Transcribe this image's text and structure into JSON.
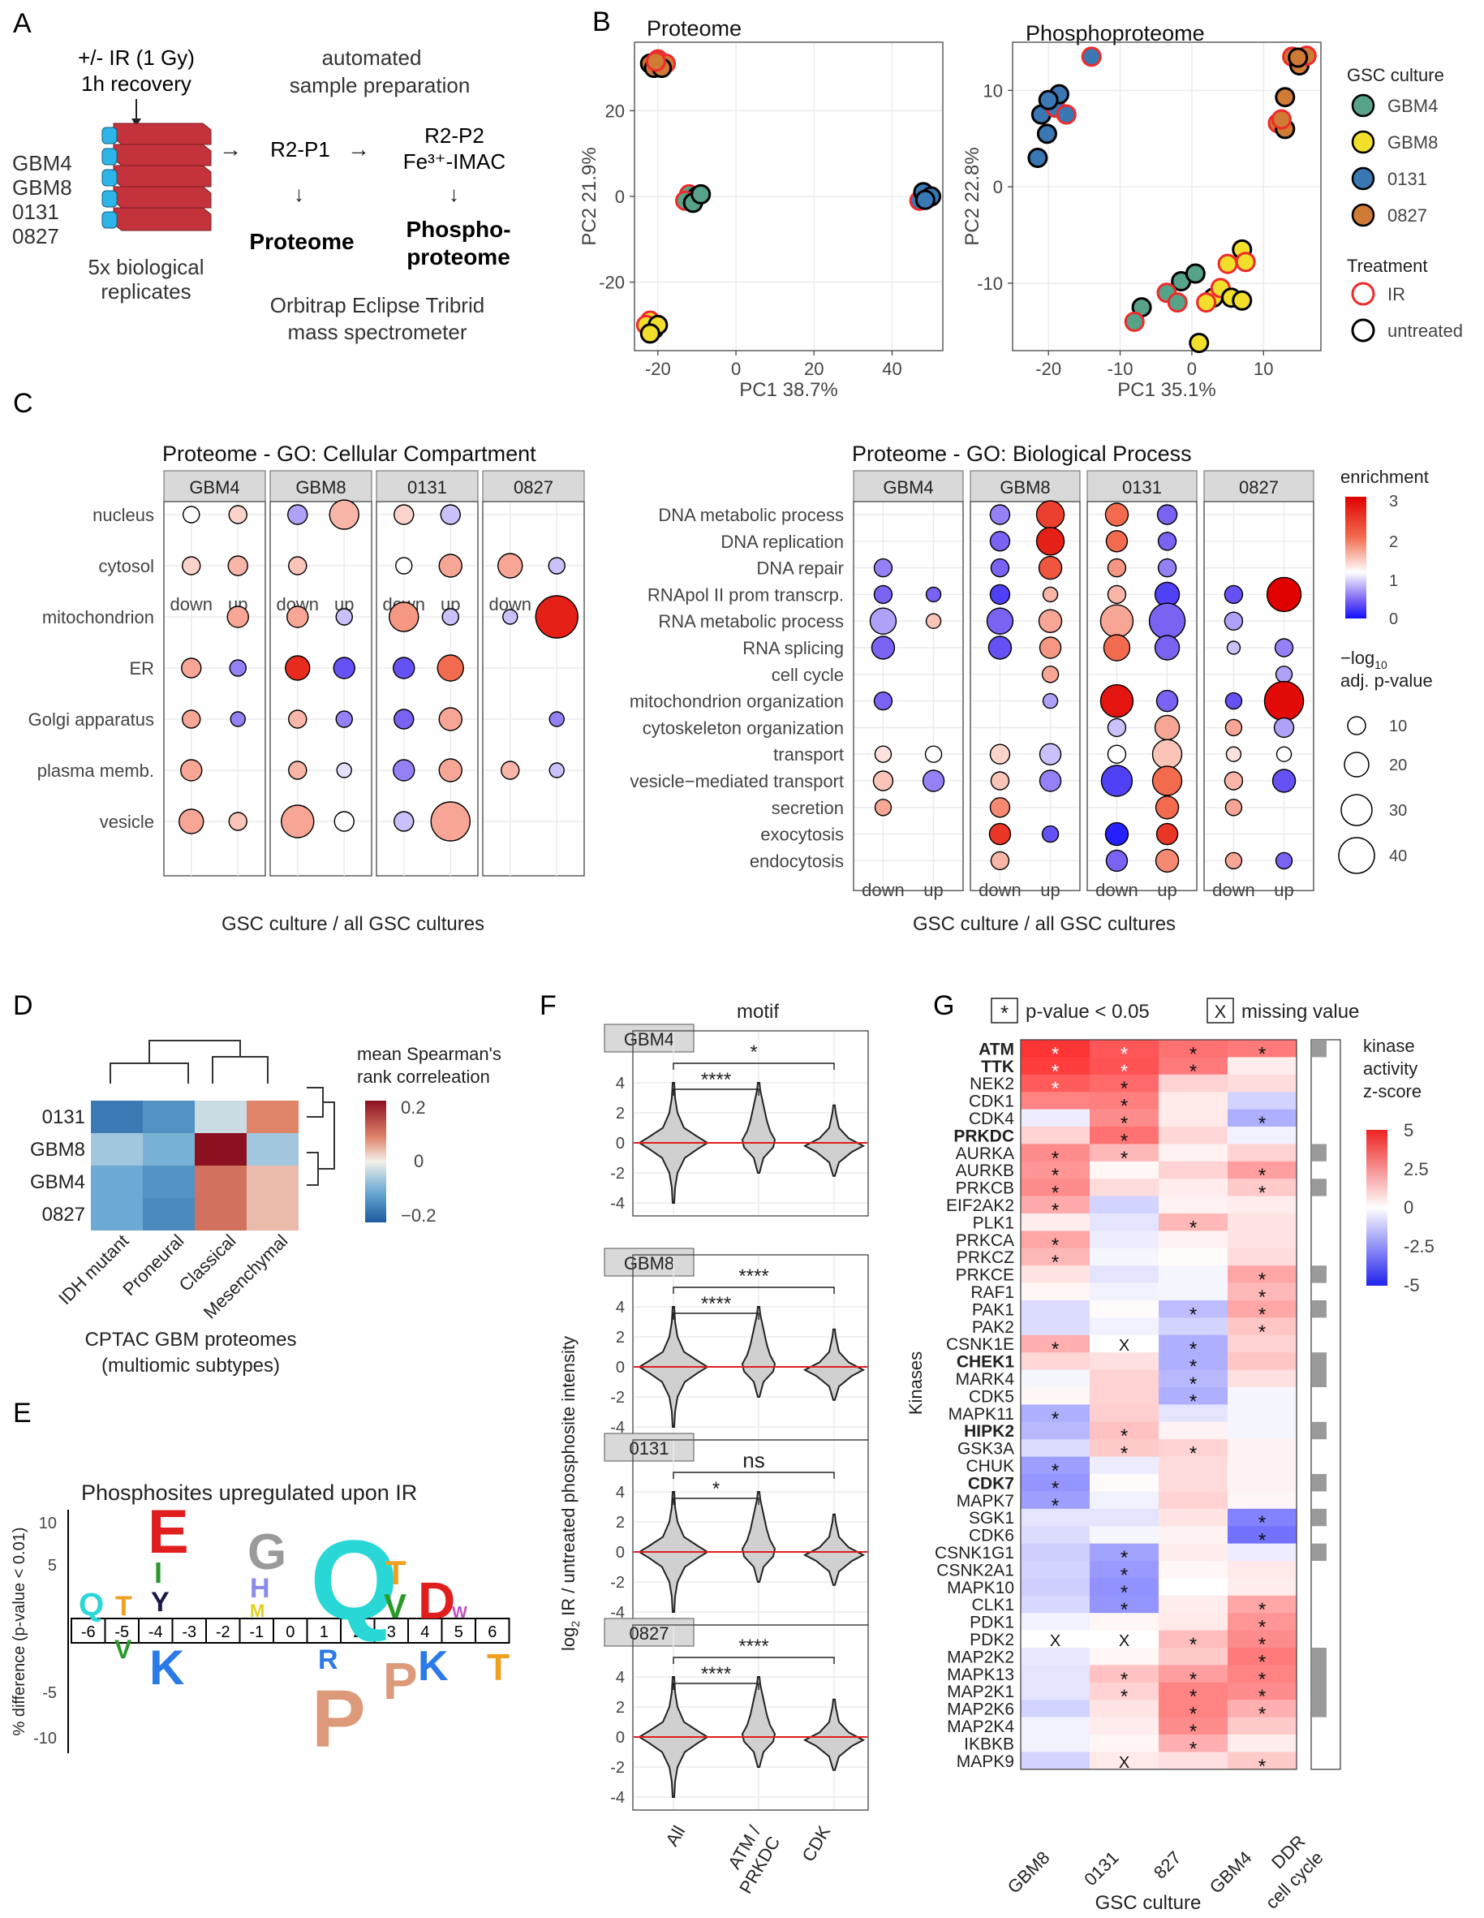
{
  "panels": {
    "A": "A",
    "B": "B",
    "C": "C",
    "D": "D",
    "E": "E",
    "F": "F",
    "G": "G"
  },
  "panelA": {
    "ir": "+/-  IR (1 Gy)",
    "recovery": "1h recovery",
    "cultures": [
      "GBM4",
      "GBM8",
      "0131",
      "0827"
    ],
    "replicates": [
      "5x biological",
      "replicates"
    ],
    "auto": [
      "automated",
      "sample preparation"
    ],
    "r2p1": "R2-P1",
    "r2p2": "R2-P2",
    "imac": "Fe³⁺-IMAC",
    "proteome": "Proteome",
    "phospho": [
      "Phospho-",
      "proteome"
    ],
    "ms": [
      "Orbitrap Eclipse Tribrid",
      "mass spectrometer"
    ]
  },
  "panelB": {
    "proteome_title": "Proteome",
    "phospho_title": "Phosphoproteome",
    "p_xlabel": "PC1 38.7%",
    "p_ylabel": "PC2 21.9%",
    "ph_xlabel": "PC1 35.1%",
    "ph_ylabel": "PC2 22.8%",
    "p_xticks": [
      "-20",
      "0",
      "20",
      "40"
    ],
    "p_yticks": [
      "20",
      "0",
      "-20"
    ],
    "ph_xticks": [
      "-20",
      "-10",
      "0",
      "10"
    ],
    "ph_yticks": [
      "10",
      "0",
      "-10"
    ],
    "legend_title1": "GSC culture",
    "legend_title2": "Treatment",
    "cultures": [
      {
        "name": "GBM4",
        "color": "#56a38a"
      },
      {
        "name": "GBM8",
        "color": "#f1df2c"
      },
      {
        "name": "0131",
        "color": "#3a78b3"
      },
      {
        "name": "0827",
        "color": "#cf7a35"
      }
    ],
    "treatments": [
      {
        "name": "IR",
        "color": "#ee2a2a"
      },
      {
        "name": "untreated",
        "color": "#000000"
      }
    ]
  },
  "panelC": {
    "cc_title": "Proteome - GO: Cellular Compartment",
    "bp_title": "Proteome - GO: Biological Process",
    "facets": [
      "GBM4",
      "GBM8",
      "0131",
      "0827"
    ],
    "xcats": [
      "down",
      "up"
    ],
    "xlabel": "GSC culture  / all GSC cultures",
    "cc_terms": [
      "nucleus",
      "cytosol",
      "mitochondrion",
      "ER",
      "Golgi apparatus",
      "plasma memb.",
      "vesicle"
    ],
    "bp_terms": [
      "DNA metabolic process",
      "DNA replication",
      "DNA repair",
      "RNApol II prom transcrp.",
      "RNA metabolic process",
      "RNA splicing",
      "cell cycle",
      "mitochondrion organization",
      "cytoskeleton organization",
      "transport",
      "vesicle−mediated transport",
      "secretion",
      "exocytosis",
      "endocytosis"
    ],
    "legend_enrich": "enrichment",
    "enrich_ticks": [
      "3",
      "2",
      "1",
      "0"
    ],
    "legend_size": [
      "−log",
      "10",
      "adj. p-value"
    ],
    "size_ticks": [
      "10",
      "20",
      "30",
      "40"
    ]
  },
  "panelD": {
    "rows": [
      "0131",
      "GBM8",
      "GBM4",
      "0827"
    ],
    "cols": [
      "IDH mutant",
      "Proneural",
      "Classical",
      "Mesenchymal"
    ],
    "values": [
      [
        -0.16,
        -0.13,
        -0.03,
        0.1
      ],
      [
        -0.06,
        -0.09,
        0.22,
        -0.06
      ],
      [
        -0.1,
        -0.13,
        0.12,
        0.05
      ],
      [
        -0.1,
        -0.14,
        0.12,
        0.05
      ]
    ],
    "legend_title": [
      "mean Spearman's",
      "rank correleation"
    ],
    "ticks": [
      "0.2",
      "0",
      "−0.2"
    ],
    "caption": [
      "CPTAC GBM proteomes",
      "(multiomic subtypes)"
    ]
  },
  "panelE": {
    "title": "Phosphosites upregulated upon IR",
    "ylabel": "% difference (p-value < 0.01)",
    "yticks": [
      "10",
      "5",
      "-5",
      "-10"
    ],
    "positions": [
      "-6",
      "-5",
      "-4",
      "-3",
      "-2",
      "-1",
      "0",
      "1",
      "2",
      "3",
      "4",
      "5",
      "6"
    ]
  },
  "panelF": {
    "motif": "motif",
    "ylabel": [
      "log",
      "2",
      "IR / untreated phosphosite intensity"
    ],
    "xcats": [
      "All",
      "ATM /\nPRKDC",
      "CDK"
    ],
    "yticks": [
      "4",
      "2",
      "0",
      "-2",
      "-4"
    ],
    "facets": [
      {
        "name": "GBM4",
        "sig_long": "*",
        "sig_short": "****"
      },
      {
        "name": "GBM8",
        "sig_long": "****",
        "sig_short": "****"
      },
      {
        "name": "0131",
        "sig_long": "ns",
        "sig_short": "*"
      },
      {
        "name": "0827",
        "sig_long": "****",
        "sig_short": "****"
      }
    ]
  },
  "panelG": {
    "legend_sig": "p-value < 0.05",
    "legend_missing": "missing value",
    "star": "*",
    "x": "X",
    "ylabel": "Kinases",
    "xlabel": "GSC culture",
    "cols": [
      "GBM8",
      "0131",
      "827",
      "GBM4"
    ],
    "ddr_label": [
      "DDR",
      "cell cycle"
    ],
    "bold": [
      "ATM",
      "TTK",
      "PRKDC",
      "CHEK1",
      "HIPK2",
      "CDK7"
    ],
    "kinases": [
      "ATM",
      "TTK",
      "NEK2",
      "CDK1",
      "CDK4",
      "PRKDC",
      "AURKA",
      "AURKB",
      "PRKCB",
      "EIF2AK2",
      "PLK1",
      "PRKCA",
      "PRKCZ",
      "PRKCE",
      "RAF1",
      "PAK1",
      "PAK2",
      "CSNK1E",
      "CHEK1",
      "MARK4",
      "CDK5",
      "MAPK11",
      "HIPK2",
      "GSK3A",
      "CHUK",
      "CDK7",
      "MAPK7",
      "SGK1",
      "CDK6",
      "CSNK1G1",
      "CSNK2A1",
      "MAPK10",
      "CLK1",
      "PDK1",
      "PDK2",
      "MAP2K2",
      "MAPK13",
      "MAP2K1",
      "MAP2K6",
      "MAP2K4",
      "IKBKB",
      "MAPK9"
    ],
    "zscores": [
      [
        4.6,
        3.8,
        3.2,
        3.0
      ],
      [
        4.4,
        3.9,
        3.0,
        0.4
      ],
      [
        3.7,
        3.4,
        1.0,
        0.8
      ],
      [
        2.8,
        2.9,
        0.5,
        -1.0
      ],
      [
        -0.4,
        2.6,
        0.5,
        -1.8
      ],
      [
        1.0,
        3.2,
        0.9,
        -0.3
      ],
      [
        2.6,
        1.6,
        0.3,
        1.0
      ],
      [
        2.4,
        0.2,
        1.0,
        2.2
      ],
      [
        2.6,
        0.8,
        0.4,
        1.2
      ],
      [
        1.9,
        -1.0,
        0.3,
        0.4
      ],
      [
        0.4,
        -0.6,
        1.6,
        0.6
      ],
      [
        2.0,
        -0.4,
        0.3,
        0.6
      ],
      [
        1.6,
        -0.2,
        0.1,
        0.8
      ],
      [
        0.6,
        -0.6,
        -0.2,
        2.0
      ],
      [
        0.2,
        -0.3,
        -0.2,
        1.6
      ],
      [
        -0.8,
        0.1,
        -1.5,
        2.0
      ],
      [
        -0.8,
        -0.3,
        -1.0,
        1.3
      ],
      [
        1.8,
        0,
        -1.8,
        1.0
      ],
      [
        0.9,
        0.7,
        -1.8,
        1.3
      ],
      [
        -0.2,
        1.0,
        -1.6,
        0.7
      ],
      [
        0.2,
        1.0,
        -1.8,
        -0.2
      ],
      [
        -1.8,
        1.1,
        -0.6,
        -0.2
      ],
      [
        -1.6,
        1.4,
        0.3,
        -0.2
      ],
      [
        -0.8,
        1.2,
        1.0,
        0.3
      ],
      [
        -2.2,
        -0.4,
        0.8,
        0.3
      ],
      [
        -2.4,
        0.1,
        0.8,
        0.3
      ],
      [
        -2.2,
        -0.3,
        1.0,
        0.2
      ],
      [
        -0.6,
        -0.6,
        0.6,
        -2.8
      ],
      [
        -0.8,
        -0.2,
        0.3,
        -3.2
      ],
      [
        -1.1,
        -2.1,
        0.4,
        -0.4
      ],
      [
        -1.0,
        -2.3,
        0.2,
        0.5
      ],
      [
        -1.1,
        -2.5,
        0,
        0.4
      ],
      [
        -0.9,
        -2.4,
        0.4,
        2.0
      ],
      [
        -0.3,
        0.2,
        0.5,
        2.4
      ],
      [
        0,
        0,
        1.5,
        2.6
      ],
      [
        -0.5,
        0.2,
        1.2,
        3.0
      ],
      [
        -0.6,
        1.4,
        2.2,
        2.8
      ],
      [
        -0.6,
        1.0,
        2.8,
        2.6
      ],
      [
        -1.0,
        0.6,
        2.8,
        1.8
      ],
      [
        -0.3,
        0.4,
        2.6,
        1.2
      ],
      [
        -0.3,
        0.2,
        1.8,
        0.4
      ],
      [
        -1.0,
        0.5,
        0.7,
        1.2
      ]
    ],
    "sig": [
      [
        1,
        1,
        1,
        1
      ],
      [
        1,
        1,
        1,
        0
      ],
      [
        1,
        1,
        0,
        0
      ],
      [
        0,
        1,
        0,
        0
      ],
      [
        0,
        1,
        0,
        1
      ],
      [
        0,
        1,
        0,
        0
      ],
      [
        1,
        1,
        0,
        0
      ],
      [
        1,
        0,
        0,
        1
      ],
      [
        1,
        0,
        0,
        1
      ],
      [
        1,
        0,
        0,
        0
      ],
      [
        0,
        0,
        1,
        0
      ],
      [
        1,
        0,
        0,
        0
      ],
      [
        1,
        0,
        0,
        0
      ],
      [
        0,
        0,
        0,
        1
      ],
      [
        0,
        0,
        0,
        1
      ],
      [
        0,
        0,
        1,
        1
      ],
      [
        0,
        0,
        0,
        1
      ],
      [
        1,
        2,
        1,
        0
      ],
      [
        0,
        0,
        1,
        0
      ],
      [
        0,
        0,
        1,
        0
      ],
      [
        0,
        0,
        1,
        0
      ],
      [
        1,
        0,
        0,
        0
      ],
      [
        0,
        1,
        0,
        0
      ],
      [
        0,
        1,
        1,
        0
      ],
      [
        1,
        0,
        0,
        0
      ],
      [
        1,
        0,
        0,
        0
      ],
      [
        1,
        0,
        0,
        0
      ],
      [
        0,
        0,
        0,
        1
      ],
      [
        0,
        0,
        0,
        1
      ],
      [
        0,
        1,
        0,
        0
      ],
      [
        0,
        1,
        0,
        0
      ],
      [
        0,
        1,
        0,
        0
      ],
      [
        0,
        1,
        0,
        1
      ],
      [
        0,
        0,
        0,
        1
      ],
      [
        2,
        2,
        1,
        1
      ],
      [
        0,
        0,
        0,
        1
      ],
      [
        0,
        1,
        1,
        1
      ],
      [
        0,
        1,
        1,
        1
      ],
      [
        0,
        0,
        1,
        1
      ],
      [
        0,
        0,
        1,
        0
      ],
      [
        0,
        0,
        1,
        0
      ],
      [
        0,
        2,
        0,
        1
      ]
    ],
    "ddr_blocks": [
      [
        0,
        1
      ],
      [
        6,
        7
      ],
      [
        8,
        9
      ],
      [
        13,
        14
      ],
      [
        15,
        16
      ],
      [
        18,
        20
      ],
      [
        22,
        23
      ],
      [
        25,
        26
      ],
      [
        27,
        28
      ],
      [
        29,
        30
      ],
      [
        35,
        39
      ]
    ],
    "legend_title": [
      "kinase",
      "activity",
      "z-score"
    ],
    "ticks": [
      "5",
      "2.5",
      "0",
      "-2.5",
      "-5"
    ]
  }
}
